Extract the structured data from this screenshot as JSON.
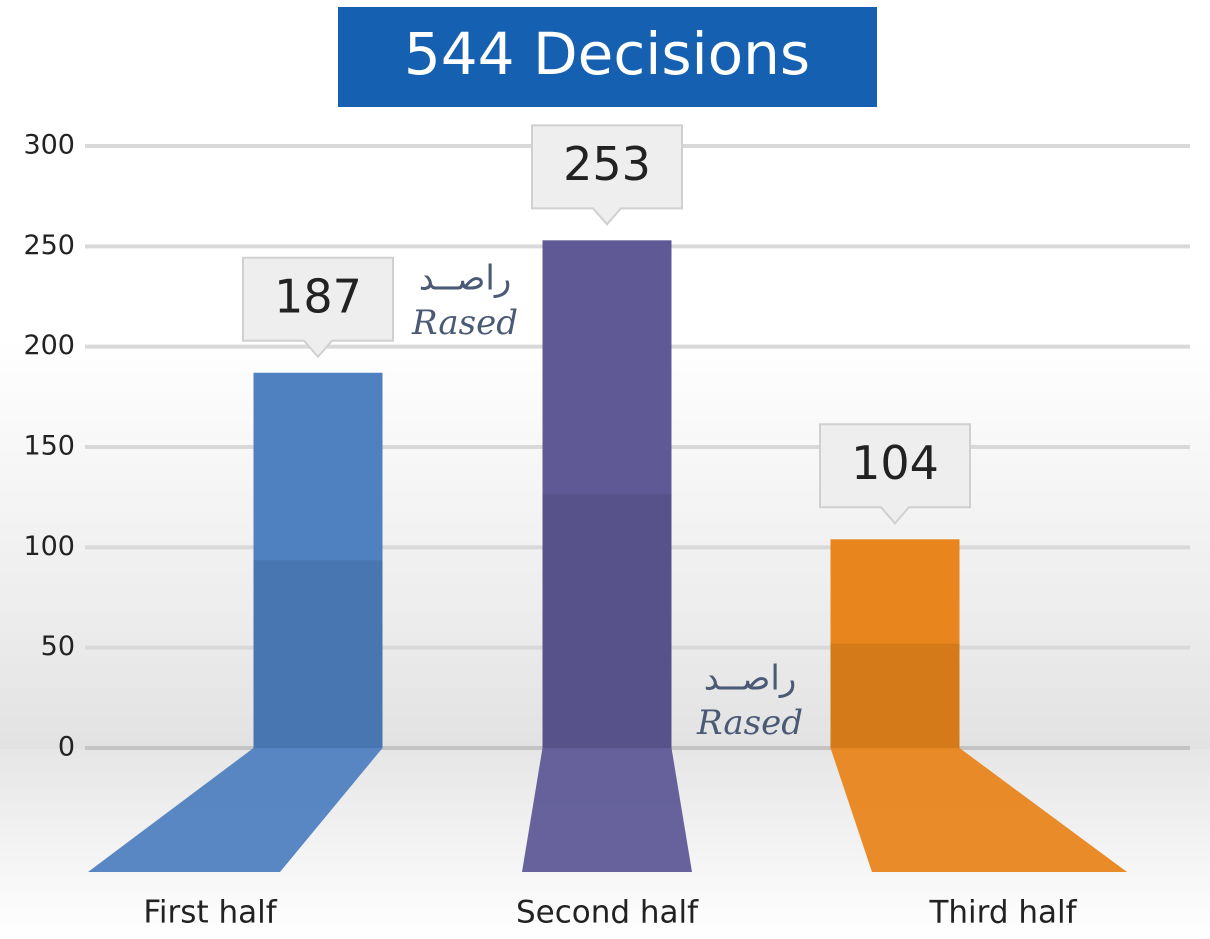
{
  "chart_data": {
    "type": "bar",
    "title": "544 Decisions",
    "categories": [
      "First half",
      "Second half",
      "Third half"
    ],
    "values": [
      187,
      253,
      104
    ],
    "colors": [
      "#4f81c0",
      "#5f5a96",
      "#e8851c"
    ],
    "ylim": [
      0,
      300
    ],
    "yticks": [
      0,
      50,
      100,
      150,
      200,
      250,
      300
    ],
    "grid": true,
    "watermark": {
      "arabic": "راصــد",
      "latin": "Rased"
    }
  }
}
